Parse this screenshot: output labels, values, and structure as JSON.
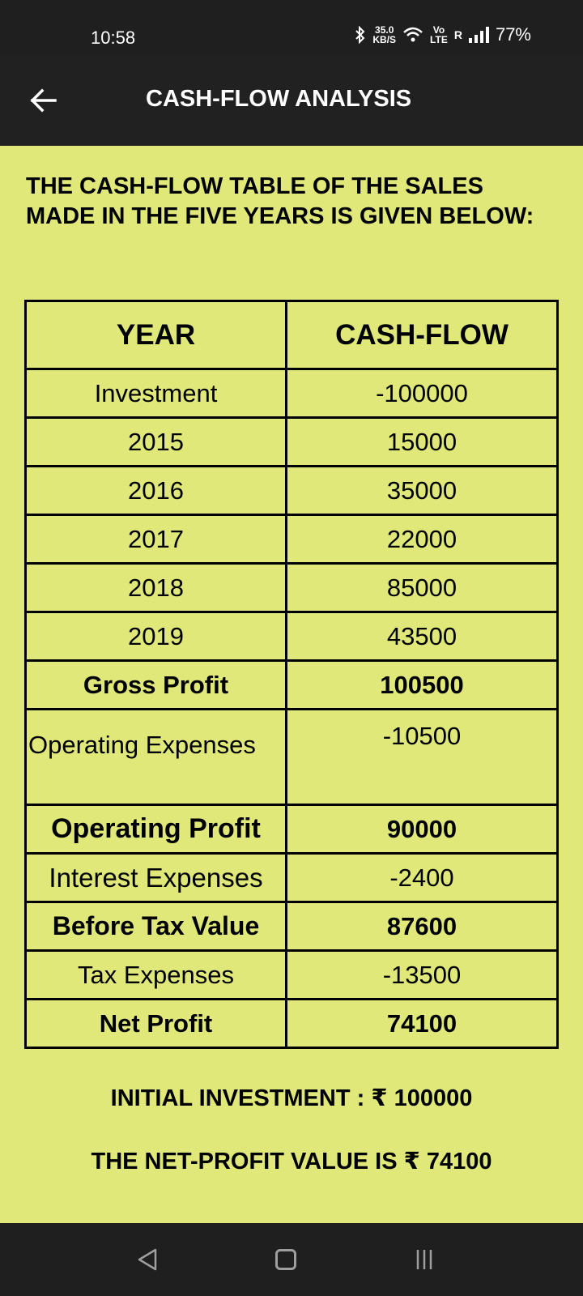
{
  "status_bar": {
    "time": "10:58",
    "net_speed_value": "35.0",
    "net_speed_unit": "KB/S",
    "volte_top": "Vo",
    "volte_bottom": "LTE",
    "roaming": "R",
    "battery": "77%"
  },
  "app_bar": {
    "title": "CASH-FLOW ANALYSIS"
  },
  "intro": "THE CASH-FLOW TABLE OF THE SALES MADE IN THE FIVE YEARS IS GIVEN BELOW:",
  "table": {
    "headers": [
      "YEAR",
      "CASH-FLOW"
    ],
    "rows": [
      {
        "label": "Investment",
        "value": "-100000"
      },
      {
        "label": "2015",
        "value": "15000"
      },
      {
        "label": "2016",
        "value": "35000"
      },
      {
        "label": "2017",
        "value": "22000"
      },
      {
        "label": "2018",
        "value": "85000"
      },
      {
        "label": "2019",
        "value": "43500"
      },
      {
        "label": "Gross Profit",
        "value": "100500"
      },
      {
        "label": "Operating Expenses",
        "value": "-10500"
      },
      {
        "label": "Operating Profit",
        "value": "90000"
      },
      {
        "label": "Interest Expenses",
        "value": "-2400"
      },
      {
        "label": "Before Tax Value",
        "value": "87600"
      },
      {
        "label": "Tax Expenses",
        "value": "-13500"
      },
      {
        "label": "Net Profit",
        "value": "74100"
      }
    ]
  },
  "summary": {
    "initial_investment": "INITIAL INVESTMENT : ₹ 100000",
    "net_profit": "THE NET-PROFIT VALUE IS ₹ 74100"
  },
  "colors": {
    "background": "#dfe878",
    "app_bar": "#212121"
  }
}
